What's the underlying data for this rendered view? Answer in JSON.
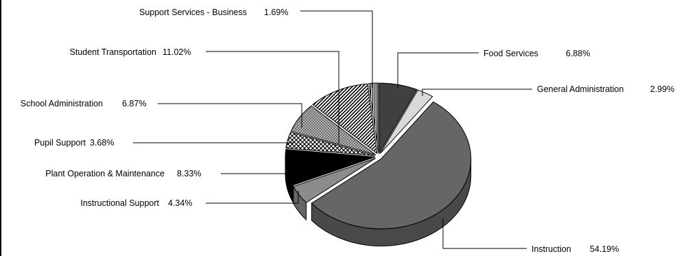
{
  "chart_data": {
    "type": "pie",
    "style": "3d-exploded",
    "legend": "none",
    "slices": [
      {
        "label": "Food Services",
        "value_text": "6.88%",
        "value": 6.88,
        "color": "#404040",
        "pattern": "solid"
      },
      {
        "label": "General Administration",
        "value_text": "2.99%",
        "value": 2.99,
        "color": "#d9d9d9",
        "pattern": "solid"
      },
      {
        "label": "Instruction",
        "value_text": "54.19%",
        "value": 54.19,
        "color": "#666666",
        "pattern": "solid"
      },
      {
        "label": "Instructional Support",
        "value_text": "4.34%",
        "value": 4.34,
        "color": "#8c8c8c",
        "pattern": "solid"
      },
      {
        "label": "Plant Operation & Maintenance",
        "value_text": "8.33%",
        "value": 8.33,
        "color": "#000000",
        "pattern": "solid"
      },
      {
        "label": "Pupil Support",
        "value_text": "3.68%",
        "value": 3.68,
        "color": "#ffffff",
        "pattern": "crosshatch"
      },
      {
        "label": "School Administration",
        "value_text": "6.87%",
        "value": 6.87,
        "color": "#9a9a9a",
        "pattern": "checker"
      },
      {
        "label": "Student Transportation",
        "value_text": "11.02%",
        "value": 11.02,
        "color": "#ffffff",
        "pattern": "diagonal"
      },
      {
        "label": "Support Services - Business",
        "value_text": "1.69%",
        "value": 1.69,
        "color": "#ffffff",
        "pattern": "vertical-stripes"
      }
    ]
  }
}
